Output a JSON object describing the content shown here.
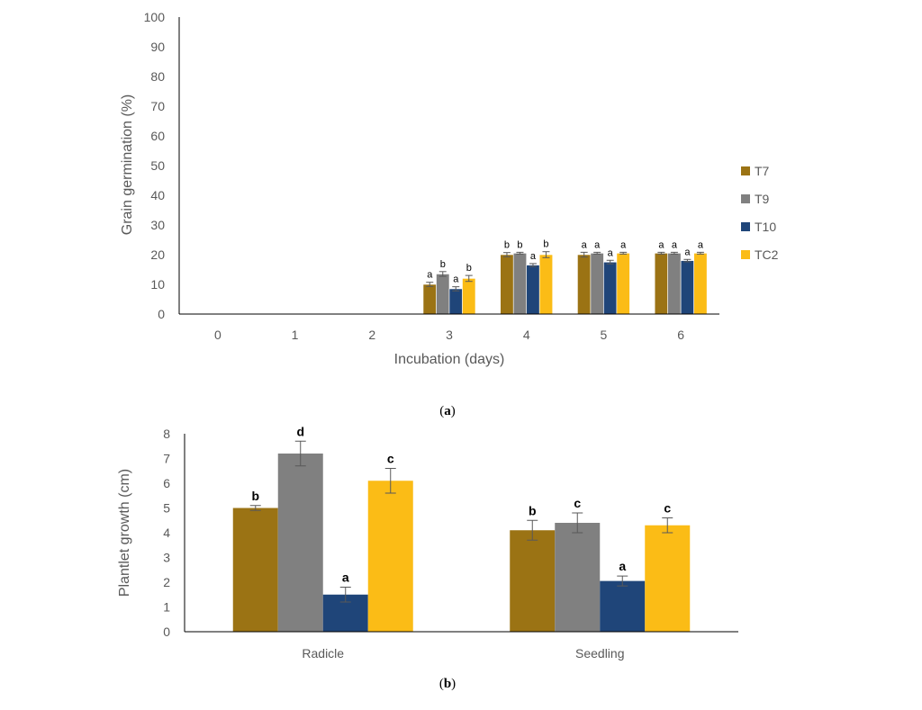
{
  "chart_data": [
    {
      "type": "bar",
      "panel_label": "a",
      "xlabel": "Incubation (days)",
      "ylabel": "Grain germination (%)",
      "ylim": [
        0,
        100
      ],
      "yticks": [
        "0",
        "10",
        "20",
        "30",
        "40",
        "50",
        "60",
        "70",
        "80",
        "90",
        "100"
      ],
      "categories": [
        "0",
        "1",
        "2",
        "3",
        "4",
        "5",
        "6"
      ],
      "legend_position": "right",
      "series": [
        {
          "name": "T7",
          "color": "#9b7314",
          "values": [
            0,
            0,
            0,
            10,
            20,
            20,
            20.5
          ],
          "errors": [
            0,
            0,
            0,
            0.7,
            0.7,
            0.8,
            0.3
          ],
          "letters": [
            "",
            "",
            "",
            "a",
            "b",
            "a",
            "a"
          ]
        },
        {
          "name": "T9",
          "color": "#808080",
          "values": [
            0,
            0,
            0,
            13.5,
            20.5,
            20.5,
            20.5
          ],
          "errors": [
            0,
            0,
            0,
            0.8,
            0.3,
            0.3,
            0.3
          ],
          "letters": [
            "",
            "",
            "",
            "b",
            "b",
            "a",
            "a"
          ]
        },
        {
          "name": "T10",
          "color": "#1f4579",
          "values": [
            0,
            0,
            0,
            8.5,
            16.5,
            17.5,
            18
          ],
          "errors": [
            0,
            0,
            0,
            0.7,
            0.5,
            0.6,
            0.4
          ],
          "letters": [
            "",
            "",
            "",
            "a",
            "a",
            "a",
            "a"
          ]
        },
        {
          "name": "TC2",
          "color": "#fbbc16",
          "values": [
            0,
            0,
            0,
            12,
            20,
            20.5,
            20.5
          ],
          "errors": [
            0,
            0,
            0,
            1.0,
            1.0,
            0.3,
            0.3
          ],
          "letters": [
            "",
            "",
            "",
            "b",
            "b",
            "a",
            "a"
          ]
        }
      ]
    },
    {
      "type": "bar",
      "panel_label": "b",
      "xlabel": "",
      "ylabel": "Plantlet growth (cm)",
      "ylim": [
        0,
        8
      ],
      "yticks": [
        "0",
        "1",
        "2",
        "3",
        "4",
        "5",
        "6",
        "7",
        "8"
      ],
      "categories": [
        "Radicle",
        "Seedling"
      ],
      "series": [
        {
          "name": "T7",
          "color": "#9b7314",
          "values": [
            5.0,
            4.1
          ],
          "errors": [
            0.1,
            0.4
          ],
          "letters": [
            "b",
            "b"
          ]
        },
        {
          "name": "T9",
          "color": "#808080",
          "values": [
            7.2,
            4.4
          ],
          "errors": [
            0.5,
            0.4
          ],
          "letters": [
            "d",
            "c"
          ]
        },
        {
          "name": "T10",
          "color": "#1f4579",
          "values": [
            1.5,
            2.05
          ],
          "errors": [
            0.3,
            0.2
          ],
          "letters": [
            "a",
            "a"
          ]
        },
        {
          "name": "TC2",
          "color": "#fbbc16",
          "values": [
            6.1,
            4.3
          ],
          "errors": [
            0.5,
            0.3
          ],
          "letters": [
            "c",
            "c"
          ]
        }
      ]
    }
  ]
}
